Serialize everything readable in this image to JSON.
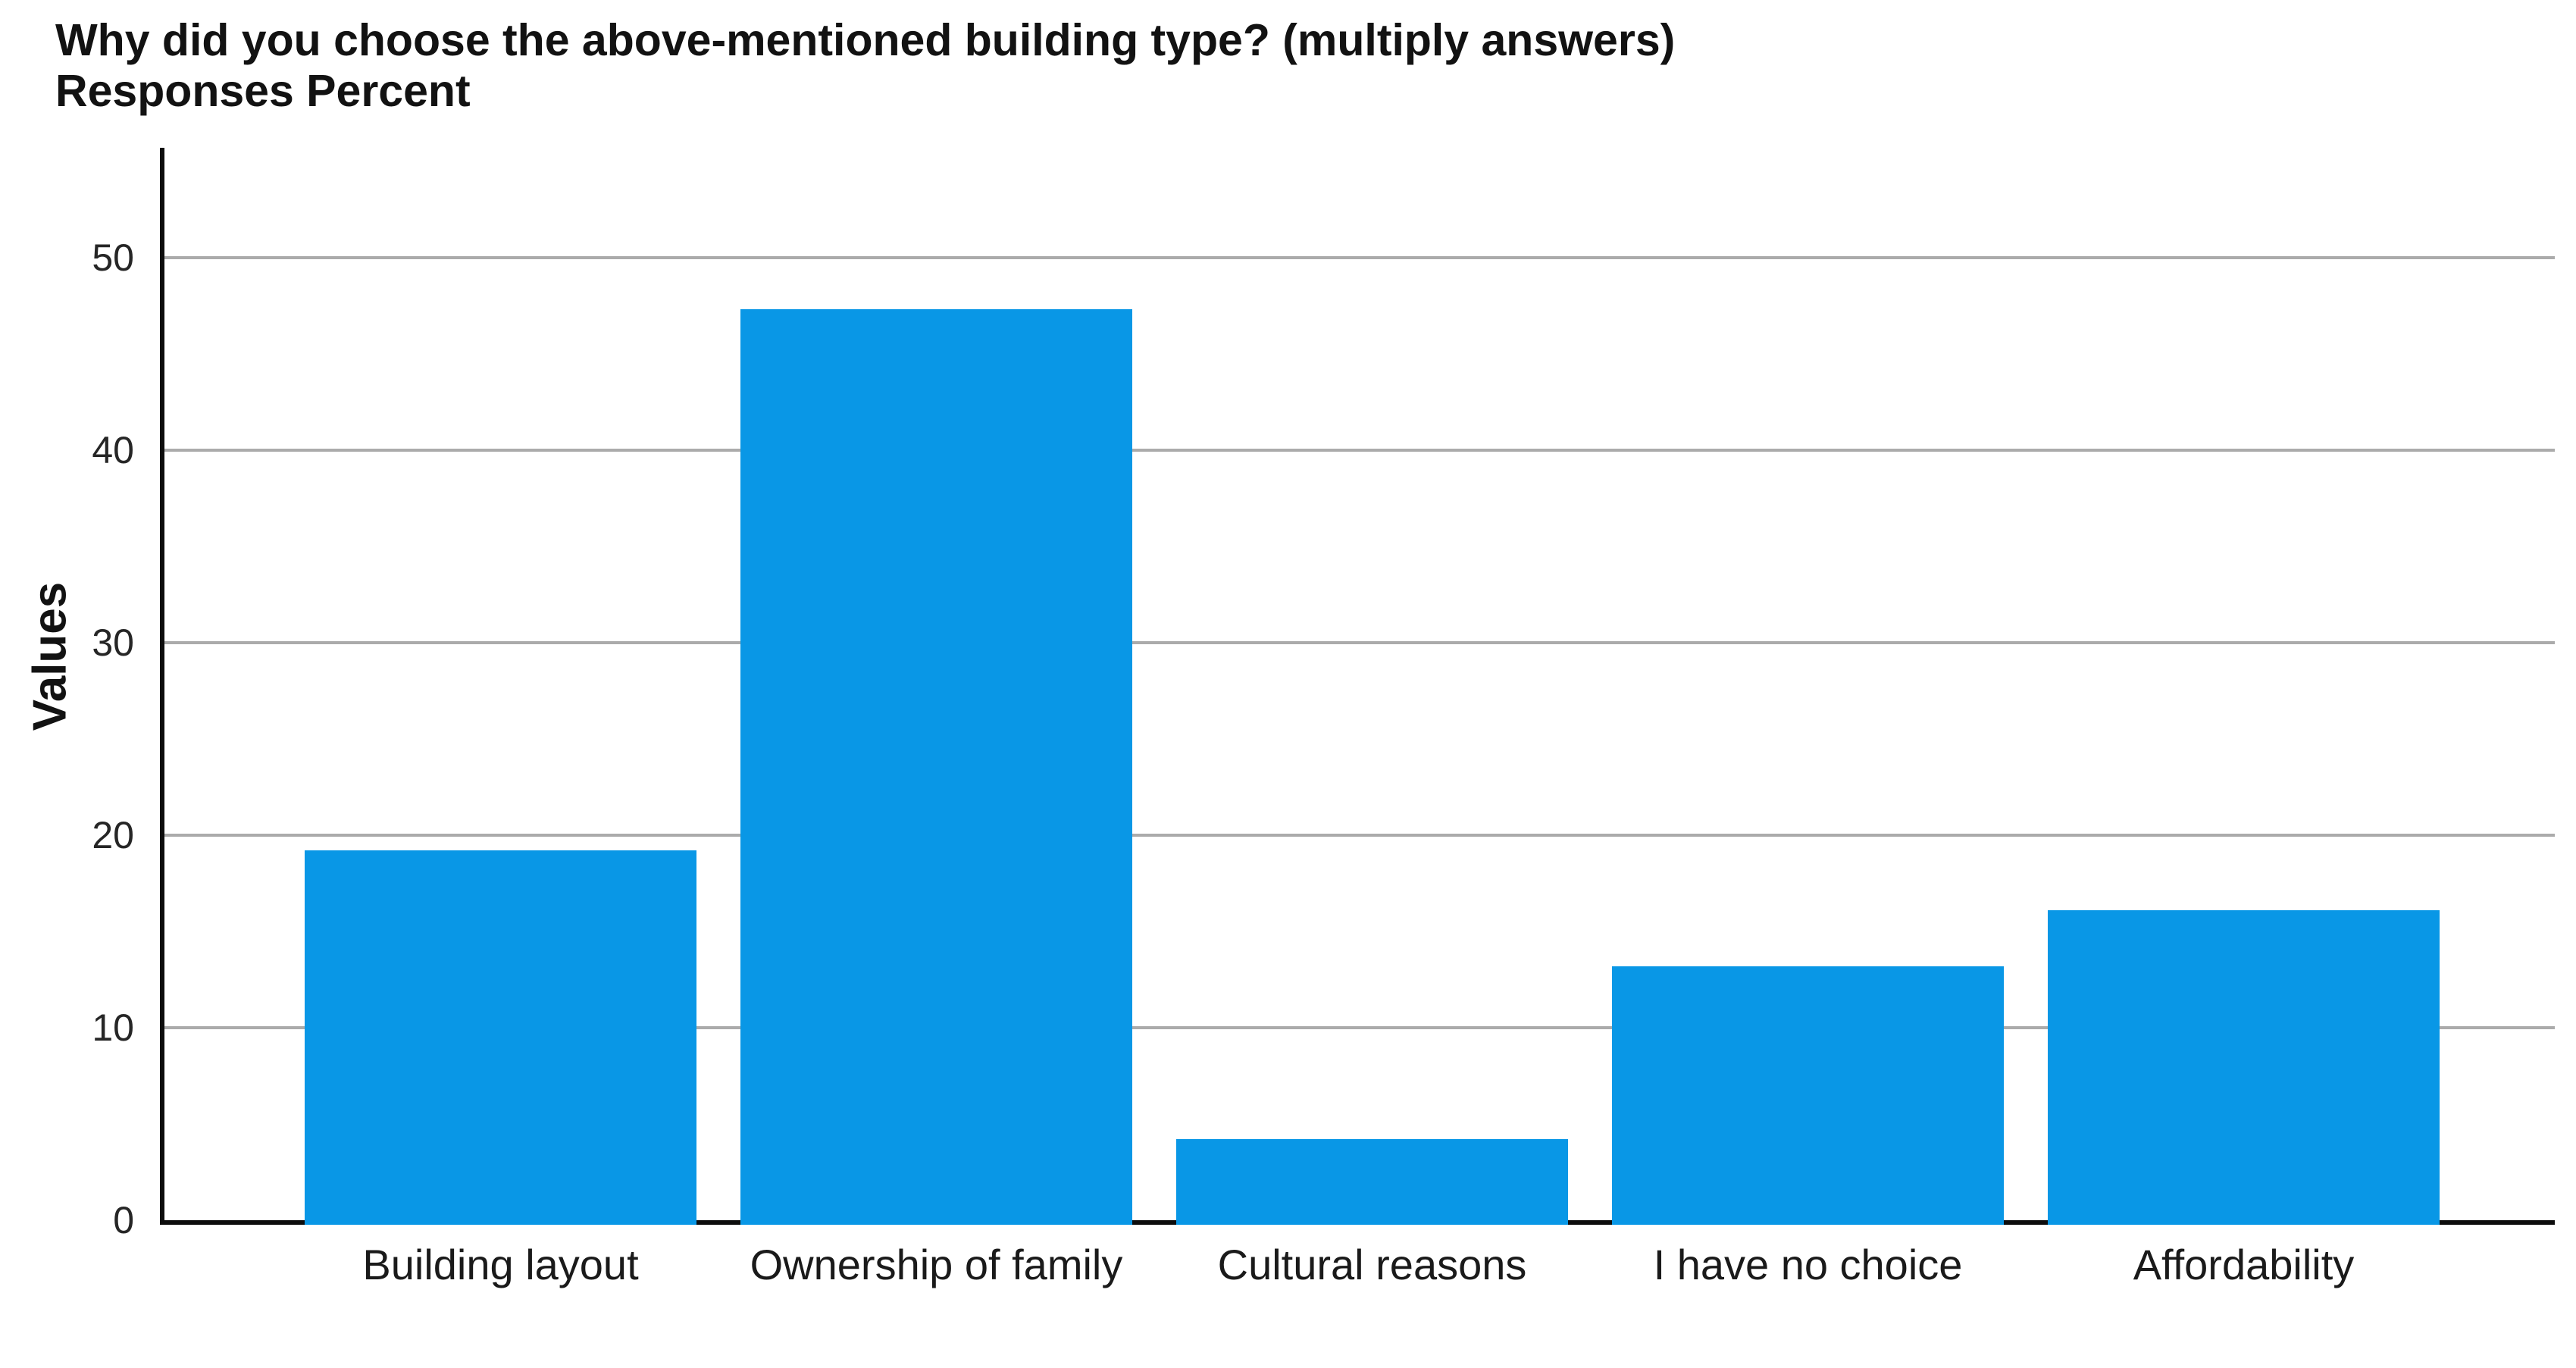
{
  "chart_data": {
    "type": "bar",
    "title": "Why did you choose the above-mentioned building type? (multiply answers)",
    "subtitle": "Responses Percent",
    "categories": [
      "Building layout",
      "Ownership of family",
      "Cultural reasons",
      "I have no choice",
      "Affordability"
    ],
    "values": [
      19.2,
      47.3,
      4.2,
      13.2,
      16.1
    ],
    "xlabel": "",
    "ylabel": "Values",
    "yticks": [
      0,
      10,
      20,
      30,
      40,
      50
    ],
    "ylim": [
      0,
      55.7
    ],
    "grid": "horizontal-gray-lines",
    "legend": "none",
    "bar_color": "#0997e6",
    "gridline_color": "#ababab",
    "axis_color": "#0d0d0d",
    "title_color": "#121212"
  }
}
